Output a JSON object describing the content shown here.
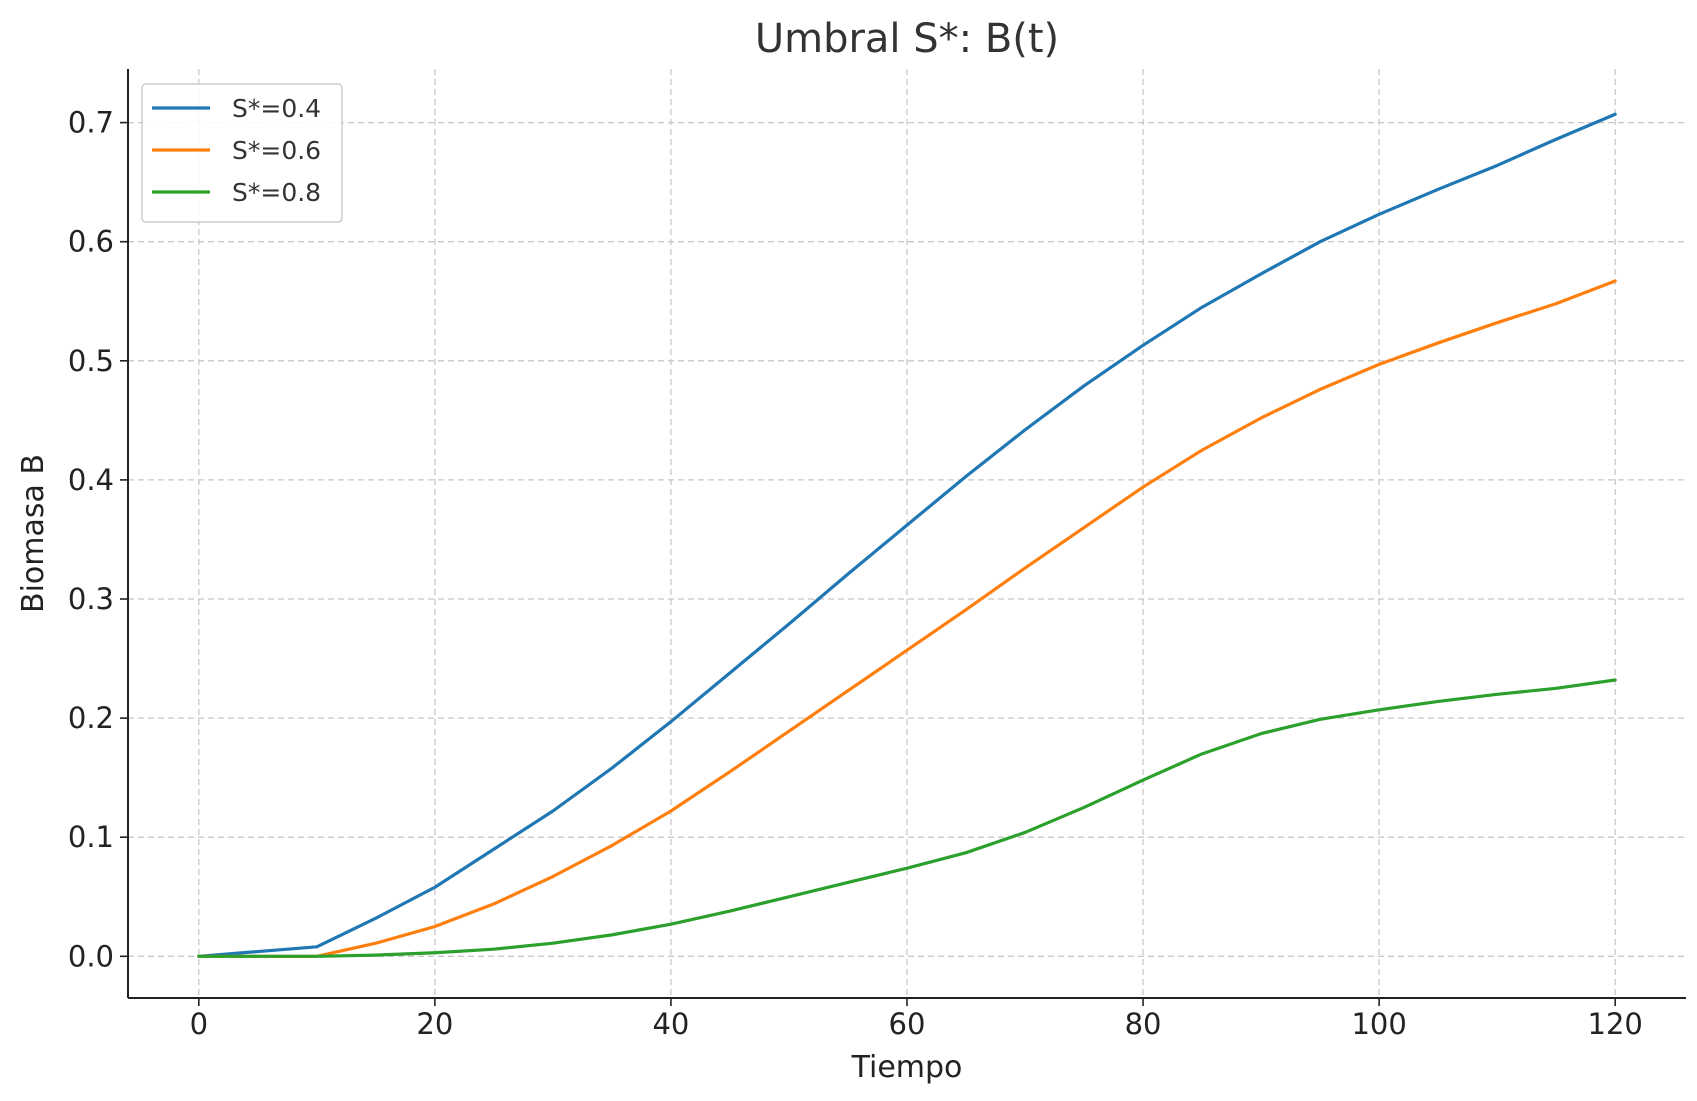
{
  "chart_data": {
    "type": "line",
    "title": "Umbral S*: B(t)",
    "xlabel": "Tiempo",
    "ylabel": "Biomasa B",
    "xlim": [
      -6,
      126
    ],
    "ylim": [
      -0.035,
      0.745
    ],
    "xticks": [
      0,
      20,
      40,
      60,
      80,
      100,
      120
    ],
    "yticks": [
      0.0,
      0.1,
      0.2,
      0.3,
      0.4,
      0.5,
      0.6,
      0.7
    ],
    "xtick_labels": [
      "0",
      "20",
      "40",
      "60",
      "80",
      "100",
      "120"
    ],
    "ytick_labels": [
      "0.0",
      "0.1",
      "0.2",
      "0.3",
      "0.4",
      "0.5",
      "0.6",
      "0.7"
    ],
    "grid": true,
    "legend_position": "top-left",
    "x": [
      0,
      5,
      10,
      15,
      20,
      25,
      30,
      35,
      40,
      45,
      50,
      55,
      60,
      65,
      70,
      75,
      80,
      85,
      90,
      95,
      100,
      105,
      110,
      115,
      120
    ],
    "series": [
      {
        "name": "S*=0.4",
        "color": "#1f77b4",
        "values": [
          0.0,
          0.004,
          0.008,
          0.032,
          0.058,
          0.09,
          0.122,
          0.158,
          0.197,
          0.238,
          0.279,
          0.321,
          0.362,
          0.403,
          0.442,
          0.479,
          0.513,
          0.545,
          0.573,
          0.6,
          0.623,
          0.644,
          0.664,
          0.686,
          0.707
        ]
      },
      {
        "name": "S*=0.6",
        "color": "#ff7f0e",
        "values": [
          0.0,
          0.0,
          0.0,
          0.011,
          0.025,
          0.044,
          0.067,
          0.093,
          0.122,
          0.155,
          0.189,
          0.223,
          0.257,
          0.291,
          0.326,
          0.36,
          0.394,
          0.425,
          0.452,
          0.476,
          0.497,
          0.515,
          0.532,
          0.548,
          0.567
        ]
      },
      {
        "name": "S*=0.8",
        "color": "#2ca02c",
        "values": [
          0.0,
          0.0,
          0.0,
          0.001,
          0.003,
          0.006,
          0.011,
          0.018,
          0.027,
          0.038,
          0.05,
          0.062,
          0.074,
          0.087,
          0.104,
          0.125,
          0.148,
          0.17,
          0.187,
          0.199,
          0.207,
          0.214,
          0.22,
          0.225,
          0.232
        ]
      }
    ]
  }
}
